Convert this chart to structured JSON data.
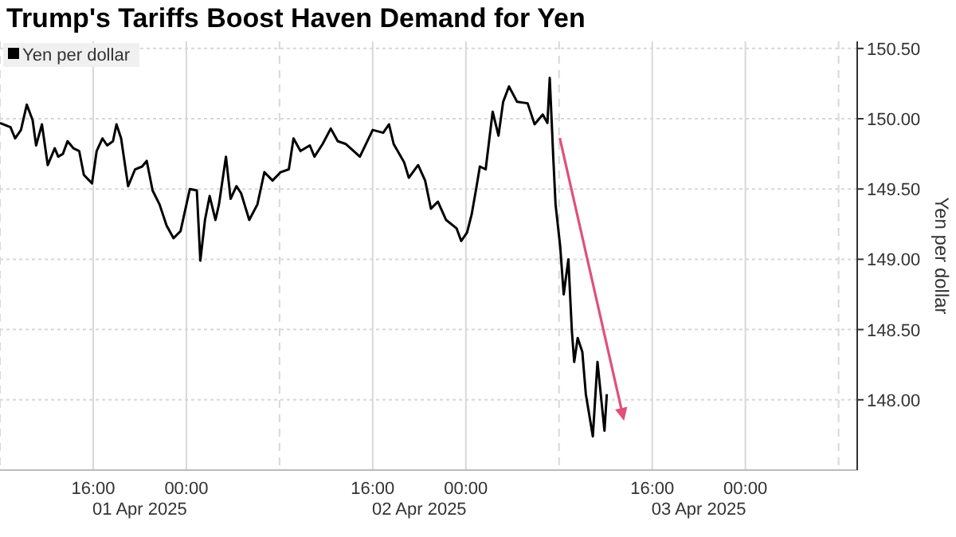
{
  "chart_data": {
    "type": "line",
    "title": "Trump's Tariffs Boost Haven Demand for Yen",
    "ylabel": "Yen per dollar",
    "annotations": [
      "01 Apr 2025",
      "02 Apr 2025",
      "03 Apr 2025"
    ],
    "legend": "top left",
    "grid": true,
    "marker": "none",
    "line_style": "solid",
    "xlim": [
      "2025-04-01T08:00",
      "2025-04-04T09:36"
    ],
    "ylim": [
      147.5,
      150.55
    ],
    "xticks": [
      {
        "value": "2025-04-01T08:00",
        "label": null
      },
      {
        "value": "2025-04-01T16:00",
        "label": "16:00"
      },
      {
        "value": "2025-04-02T00:00",
        "label": "00:00"
      },
      {
        "value": "2025-04-02T08:00",
        "label": null
      },
      {
        "value": "2025-04-02T16:00",
        "label": "16:00"
      },
      {
        "value": "2025-04-03T00:00",
        "label": "00:00"
      },
      {
        "value": "2025-04-03T08:00",
        "label": null
      },
      {
        "value": "2025-04-03T16:00",
        "label": "16:00"
      },
      {
        "value": "2025-04-04T00:00",
        "label": "00:00"
      },
      {
        "value": "2025-04-04T08:00",
        "label": null
      }
    ],
    "yticks": [
      {
        "value": 148,
        "label": "148.00"
      },
      {
        "value": 148.5,
        "label": "148.50"
      },
      {
        "value": 149,
        "label": "149.00"
      },
      {
        "value": 149.5,
        "label": "149.50"
      },
      {
        "value": 150,
        "label": "150.00"
      },
      {
        "value": 150.5,
        "label": "150.50"
      }
    ],
    "series": [
      {
        "name": "Yen per dollar",
        "color": "#000000",
        "x": [
          "2025-04-01T08:00",
          "2025-04-01T08:54",
          "2025-04-01T09:18",
          "2025-04-01T09:48",
          "2025-04-01T10:18",
          "2025-04-01T10:48",
          "2025-04-01T11:06",
          "2025-04-01T11:36",
          "2025-04-01T12:06",
          "2025-04-01T12:42",
          "2025-04-01T13:00",
          "2025-04-01T13:24",
          "2025-04-01T13:48",
          "2025-04-01T14:18",
          "2025-04-01T14:48",
          "2025-04-01T15:12",
          "2025-04-01T15:54",
          "2025-04-01T16:18",
          "2025-04-01T16:48",
          "2025-04-01T17:12",
          "2025-04-01T17:42",
          "2025-04-01T18:00",
          "2025-04-01T18:24",
          "2025-04-01T19:00",
          "2025-04-01T19:36",
          "2025-04-01T20:12",
          "2025-04-01T20:36",
          "2025-04-01T21:06",
          "2025-04-01T21:42",
          "2025-04-01T22:18",
          "2025-04-01T22:54",
          "2025-04-01T23:30",
          "2025-04-02T00:18",
          "2025-04-02T00:54",
          "2025-04-02T01:12",
          "2025-04-02T01:36",
          "2025-04-02T02:00",
          "2025-04-02T02:30",
          "2025-04-02T02:48",
          "2025-04-02T03:24",
          "2025-04-02T03:48",
          "2025-04-02T04:18",
          "2025-04-02T04:42",
          "2025-04-02T05:24",
          "2025-04-02T06:06",
          "2025-04-02T06:42",
          "2025-04-02T07:24",
          "2025-04-02T08:06",
          "2025-04-02T08:48",
          "2025-04-02T09:12",
          "2025-04-02T09:48",
          "2025-04-02T10:36",
          "2025-04-02T11:00",
          "2025-04-02T11:42",
          "2025-04-02T12:24",
          "2025-04-02T13:00",
          "2025-04-02T13:42",
          "2025-04-02T14:54",
          "2025-04-02T16:00",
          "2025-04-02T16:54",
          "2025-04-02T17:24",
          "2025-04-02T17:48",
          "2025-04-02T18:42",
          "2025-04-02T19:06",
          "2025-04-02T19:54",
          "2025-04-02T20:30",
          "2025-04-02T21:00",
          "2025-04-02T21:36",
          "2025-04-02T22:18",
          "2025-04-02T23:12",
          "2025-04-02T23:36",
          "2025-04-03T00:06",
          "2025-04-03T00:30",
          "2025-04-03T00:54",
          "2025-04-03T01:12",
          "2025-04-03T01:42",
          "2025-04-03T02:18",
          "2025-04-03T02:48",
          "2025-04-03T03:12",
          "2025-04-03T03:42",
          "2025-04-03T04:24",
          "2025-04-03T05:18",
          "2025-04-03T05:54",
          "2025-04-03T06:36",
          "2025-04-03T07:00",
          "2025-04-03T07:12",
          "2025-04-03T07:24",
          "2025-04-03T07:30",
          "2025-04-03T07:42",
          "2025-04-03T08:06",
          "2025-04-03T08:24",
          "2025-04-03T08:48",
          "2025-04-03T09:06",
          "2025-04-03T09:18",
          "2025-04-03T09:36",
          "2025-04-03T10:00",
          "2025-04-03T10:18",
          "2025-04-03T10:54",
          "2025-04-03T11:18",
          "2025-04-03T11:54",
          "2025-04-03T12:06"
        ],
        "values": [
          149.97,
          149.94,
          149.86,
          149.92,
          150.1,
          149.99,
          149.81,
          149.96,
          149.67,
          149.79,
          149.73,
          149.75,
          149.84,
          149.79,
          149.77,
          149.6,
          149.54,
          149.77,
          149.86,
          149.81,
          149.84,
          149.96,
          149.86,
          149.52,
          149.64,
          149.66,
          149.7,
          149.49,
          149.39,
          149.24,
          149.15,
          149.2,
          149.5,
          149.49,
          148.99,
          149.28,
          149.45,
          149.28,
          149.39,
          149.73,
          149.43,
          149.52,
          149.47,
          149.28,
          149.39,
          149.62,
          149.56,
          149.62,
          149.64,
          149.86,
          149.77,
          149.81,
          149.73,
          149.82,
          149.93,
          149.84,
          149.82,
          149.73,
          149.92,
          149.9,
          149.96,
          149.82,
          149.69,
          149.58,
          149.67,
          149.56,
          149.36,
          149.41,
          149.28,
          149.22,
          149.13,
          149.19,
          149.32,
          149.51,
          149.66,
          149.64,
          150.05,
          149.88,
          150.12,
          150.23,
          150.12,
          150.11,
          149.96,
          150.03,
          149.97,
          150.29,
          149.92,
          149.73,
          149.39,
          149.09,
          148.75,
          149.0,
          148.49,
          148.27,
          148.44,
          148.34,
          148.04,
          147.74,
          148.27,
          147.78,
          148.04
        ]
      }
    ]
  }
}
